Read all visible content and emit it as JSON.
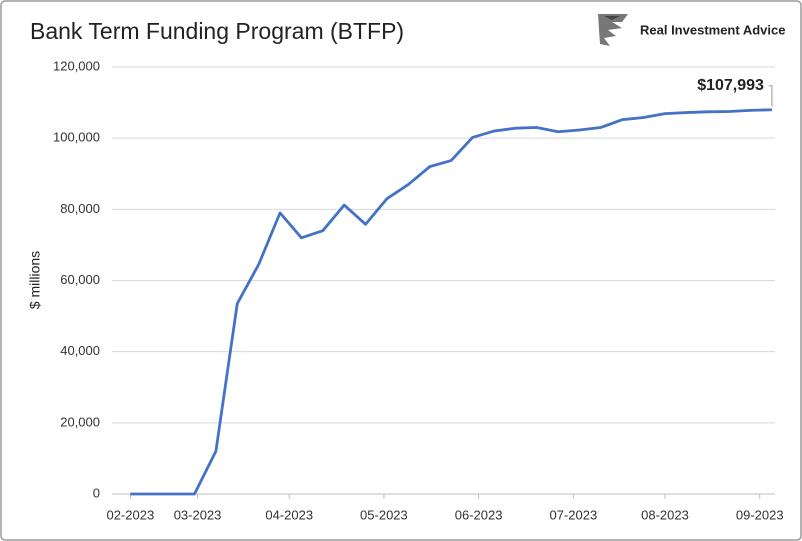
{
  "chart_data": {
    "type": "line",
    "title": "Bank Term Funding Program (BTFP)",
    "brand": "Real Investment Advice",
    "ylabel": "$ millions",
    "annotation": "$107,993",
    "x": [
      0,
      7,
      14,
      21,
      28,
      35,
      42,
      49,
      56,
      63,
      70,
      77,
      84,
      91,
      98,
      105,
      112,
      119,
      126,
      133,
      140,
      147,
      154,
      161,
      168,
      175,
      182,
      189,
      196,
      203,
      210
    ],
    "series": [
      {
        "name": "BTFP",
        "color": "#4472c4",
        "values": [
          0,
          0,
          0,
          0,
          12000,
          53500,
          64500,
          79000,
          72000,
          74000,
          81200,
          75800,
          83000,
          87000,
          92000,
          93700,
          100200,
          102000,
          102800,
          103000,
          101800,
          102300,
          103000,
          105200,
          105800,
          106900,
          107200,
          107400,
          107500,
          107800,
          107993
        ]
      }
    ],
    "xlim": [
      -6,
      211
    ],
    "xticks": [
      {
        "value": 0,
        "label": "02-2023"
      },
      {
        "value": 22,
        "label": "03-2023"
      },
      {
        "value": 52,
        "label": "04-2023"
      },
      {
        "value": 83,
        "label": "05-2023"
      },
      {
        "value": 114,
        "label": "06-2023"
      },
      {
        "value": 145,
        "label": "07-2023"
      },
      {
        "value": 175,
        "label": "08-2023"
      },
      {
        "value": 206,
        "label": "09-2023"
      }
    ],
    "ylim": [
      0,
      120000
    ],
    "yticks": [
      0,
      {
        "value": 20000,
        "label": "20,000"
      },
      {
        "value": 40000,
        "label": "40,000"
      },
      {
        "value": 60000,
        "label": "60,000"
      },
      {
        "value": 80000,
        "label": "80,000"
      },
      {
        "value": 100000,
        "label": "100,000"
      },
      {
        "value": 120000,
        "label": "120,000"
      }
    ],
    "grid": true
  }
}
